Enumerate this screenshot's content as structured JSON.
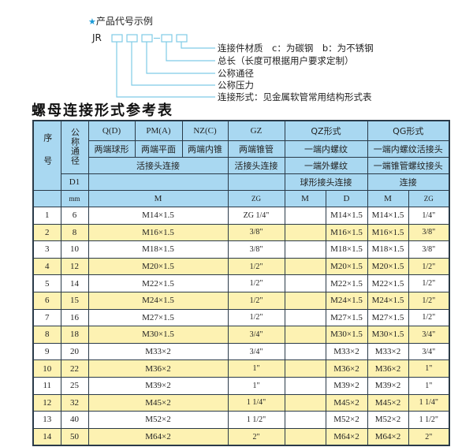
{
  "example": {
    "title": "产品代号示例",
    "star_icon": "star-icon",
    "code_prefix": "JR",
    "dash": "-",
    "labels": [
      "连接件材质　c：为碳钢　b：为不锈钢",
      "总长（长度可根据用户要求定制）",
      "公称通径",
      "公称压力",
      "连接形式：见金属软管常用结构形式表"
    ]
  },
  "table_title": "螺母连接形式参考表",
  "colors": {
    "header_bg": "#a9d8f1",
    "stripe_bg": "#fdf2b2",
    "accent": "#1a9bd8"
  },
  "header": {
    "seq": "序号",
    "nominal": "公称通径",
    "q": "Q(D)",
    "pm": "PM(A)",
    "nz": "NZ(C)",
    "gz": "GZ",
    "qz": "QZ形式",
    "qg": "QG形式",
    "q2": "两端球形",
    "pm2": "两端平面",
    "nz2": "两端内锥",
    "gz2": "两端锥管",
    "qz2": "一端内螺纹",
    "qg2": "一端内螺纹活接头",
    "union": "活接头连接",
    "gz3": "活接头连接",
    "qz3": "一端外螺纹",
    "qg3": "一端锥管螺纹接头",
    "d1": "D1",
    "qz4": "球形接头连接",
    "qg4": "连接",
    "mm": "mm",
    "m": "M",
    "zg": "ZG",
    "qz_m": "M",
    "qz_d": "D",
    "qg_m": "M",
    "qg_zg": "ZG"
  },
  "rows": [
    {
      "no": "1",
      "dn": "6",
      "m": "M14×1.5",
      "zg": "ZG 1/4\"",
      "qz_m": "",
      "qz_d": "M14×1.5",
      "qg_m": "M14×1.5",
      "qg_zg": "1/4\""
    },
    {
      "no": "2",
      "dn": "8",
      "m": "M16×1.5",
      "zg": "3/8\"",
      "qz_m": "",
      "qz_d": "M16×1.5",
      "qg_m": "M16×1.5",
      "qg_zg": "3/8\""
    },
    {
      "no": "3",
      "dn": "10",
      "m": "M18×1.5",
      "zg": "3/8\"",
      "qz_m": "",
      "qz_d": "M18×1.5",
      "qg_m": "M18×1.5",
      "qg_zg": "3/8\""
    },
    {
      "no": "4",
      "dn": "12",
      "m": "M20×1.5",
      "zg": "1/2\"",
      "qz_m": "",
      "qz_d": "M20×1.5",
      "qg_m": "M20×1.5",
      "qg_zg": "1/2\""
    },
    {
      "no": "5",
      "dn": "14",
      "m": "M22×1.5",
      "zg": "1/2\"",
      "qz_m": "",
      "qz_d": "M22×1.5",
      "qg_m": "M22×1.5",
      "qg_zg": "1/2\""
    },
    {
      "no": "6",
      "dn": "15",
      "m": "M24×1.5",
      "zg": "1/2\"",
      "qz_m": "",
      "qz_d": "M24×1.5",
      "qg_m": "M24×1.5",
      "qg_zg": "1/2\""
    },
    {
      "no": "7",
      "dn": "16",
      "m": "M27×1.5",
      "zg": "1/2\"",
      "qz_m": "",
      "qz_d": "M27×1.5",
      "qg_m": "M27×1.5",
      "qg_zg": "1/2\""
    },
    {
      "no": "8",
      "dn": "18",
      "m": "M30×1.5",
      "zg": "3/4\"",
      "qz_m": "",
      "qz_d": "M30×1.5",
      "qg_m": "M30×1.5",
      "qg_zg": "3/4\""
    },
    {
      "no": "9",
      "dn": "20",
      "m": "M33×2",
      "zg": "3/4\"",
      "qz_m": "",
      "qz_d": "M33×2",
      "qg_m": "M33×2",
      "qg_zg": "3/4\""
    },
    {
      "no": "10",
      "dn": "22",
      "m": "M36×2",
      "zg": "1\"",
      "qz_m": "",
      "qz_d": "M36×2",
      "qg_m": "M36×2",
      "qg_zg": "1\""
    },
    {
      "no": "11",
      "dn": "25",
      "m": "M39×2",
      "zg": "1\"",
      "qz_m": "",
      "qz_d": "M39×2",
      "qg_m": "M39×2",
      "qg_zg": "1\""
    },
    {
      "no": "12",
      "dn": "32",
      "m": "M45×2",
      "zg": "1 1/4\"",
      "qz_m": "",
      "qz_d": "M45×2",
      "qg_m": "M45×2",
      "qg_zg": "1 1/4\""
    },
    {
      "no": "13",
      "dn": "40",
      "m": "M52×2",
      "zg": "1 1/2\"",
      "qz_m": "",
      "qz_d": "M52×2",
      "qg_m": "M52×2",
      "qg_zg": "1 1/2\""
    },
    {
      "no": "14",
      "dn": "50",
      "m": "M64×2",
      "zg": "2\"",
      "qz_m": "",
      "qz_d": "M64×2",
      "qg_m": "M64×2",
      "qg_zg": "2\""
    }
  ]
}
